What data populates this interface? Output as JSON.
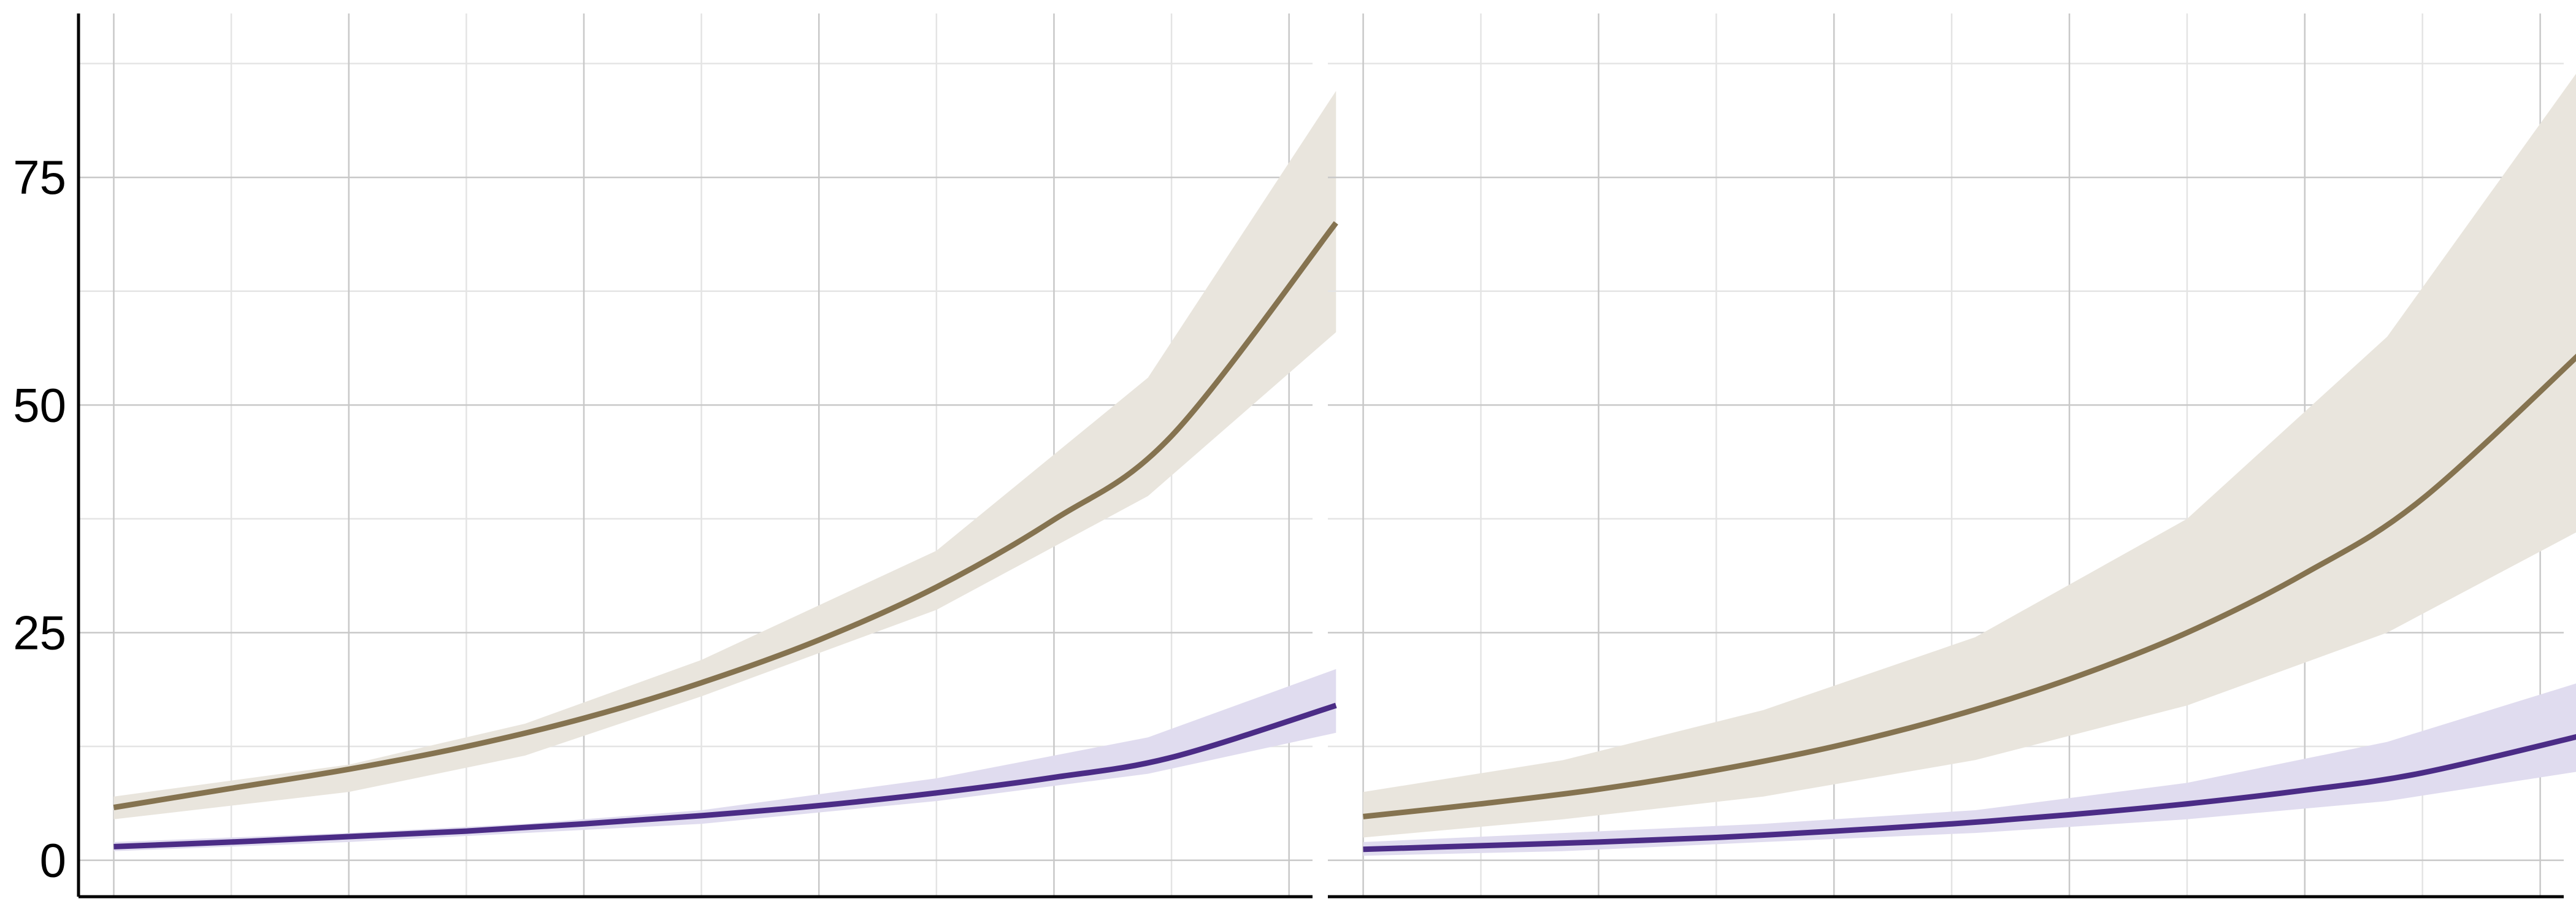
{
  "chart_data": [
    {
      "type": "line",
      "panel": "left",
      "title": "",
      "xlabel": "",
      "ylabel": "",
      "ylim": [
        -4,
        93
      ],
      "xlim": [
        -0.3,
        10.2
      ],
      "ytick_labels": [
        "0",
        "25",
        "50",
        "75"
      ],
      "yticks": [
        0,
        25,
        50,
        75
      ],
      "x_grid_positions": [
        0,
        1,
        2,
        3,
        4,
        5,
        6,
        7,
        8,
        9,
        10
      ],
      "grid": true,
      "series": [
        {
          "color": "#857350",
          "band_color": "#e9e5dd",
          "x": [
            0,
            1,
            2,
            3,
            4,
            5,
            6,
            7,
            8,
            9,
            10.4
          ],
          "values": [
            5.8,
            7.9,
            10.0,
            12.5,
            15.6,
            19.5,
            24.2,
            30.0,
            37.4,
            46.6,
            70.0
          ],
          "band_x": [
            0,
            2,
            3.5,
            5,
            7,
            8.8,
            10.4
          ],
          "band_upper": [
            7.0,
            10.5,
            15.0,
            22.0,
            34.0,
            53.0,
            84.5
          ],
          "band_lower": [
            4.5,
            7.5,
            11.5,
            18.0,
            27.5,
            40.0,
            58.0
          ]
        },
        {
          "color": "#4b2c86",
          "band_color": "#e0dcef",
          "x": [
            0,
            1,
            2,
            3,
            4,
            5,
            6,
            7,
            8,
            9,
            10.4
          ],
          "values": [
            1.5,
            2.0,
            2.6,
            3.2,
            4.0,
            4.9,
            6.0,
            7.4,
            9.1,
            11.3,
            17.0
          ],
          "band_x": [
            0,
            2,
            3.5,
            5,
            7,
            8.8,
            10.4
          ],
          "band_upper": [
            2.0,
            3.0,
            4.0,
            5.5,
            9.0,
            13.5,
            21.0
          ],
          "band_lower": [
            1.0,
            2.0,
            3.0,
            4.0,
            6.5,
            9.5,
            14.0
          ]
        }
      ]
    },
    {
      "type": "line",
      "panel": "right",
      "title": "",
      "xlabel": "",
      "ylabel": "",
      "ylim": [
        -4,
        93
      ],
      "xlim": [
        -0.3,
        10.2
      ],
      "ytick_labels": [
        "0",
        "25",
        "50",
        "75"
      ],
      "yticks": [
        0,
        25,
        50,
        75
      ],
      "x_grid_positions": [
        0,
        1,
        2,
        3,
        4,
        5,
        6,
        7,
        8,
        9,
        10
      ],
      "grid": true,
      "series": [
        {
          "color": "#857350",
          "band_color": "#e9e5dd",
          "x": [
            0,
            1,
            2,
            3,
            4,
            5,
            6,
            7,
            8,
            9,
            10.45
          ],
          "values": [
            4.8,
            6.2,
            7.8,
            9.9,
            12.5,
            15.8,
            19.9,
            25.0,
            31.5,
            39.7,
            57.0
          ],
          "band_x": [
            0,
            1.7,
            3.4,
            5.2,
            7.0,
            8.7,
            10.45
          ],
          "band_upper": [
            7.5,
            11.0,
            16.5,
            24.5,
            37.5,
            57.5,
            89.0
          ],
          "band_lower": [
            2.5,
            4.5,
            7.0,
            11.0,
            17.0,
            25.0,
            37.0
          ]
        },
        {
          "color": "#4b2c86",
          "band_color": "#e0dcef",
          "x": [
            0,
            1,
            2,
            3,
            4,
            5,
            6,
            7,
            8,
            9,
            10.45
          ],
          "values": [
            1.2,
            1.6,
            2.0,
            2.5,
            3.2,
            4.0,
            5.0,
            6.2,
            7.7,
            9.6,
            14.0
          ],
          "band_x": [
            0,
            1.7,
            3.4,
            5.2,
            7.0,
            8.7,
            10.45
          ],
          "band_upper": [
            2.0,
            3.0,
            4.0,
            5.5,
            8.5,
            13.0,
            20.0
          ],
          "band_lower": [
            0.5,
            1.0,
            2.0,
            3.0,
            4.5,
            6.5,
            10.0
          ]
        }
      ]
    }
  ]
}
